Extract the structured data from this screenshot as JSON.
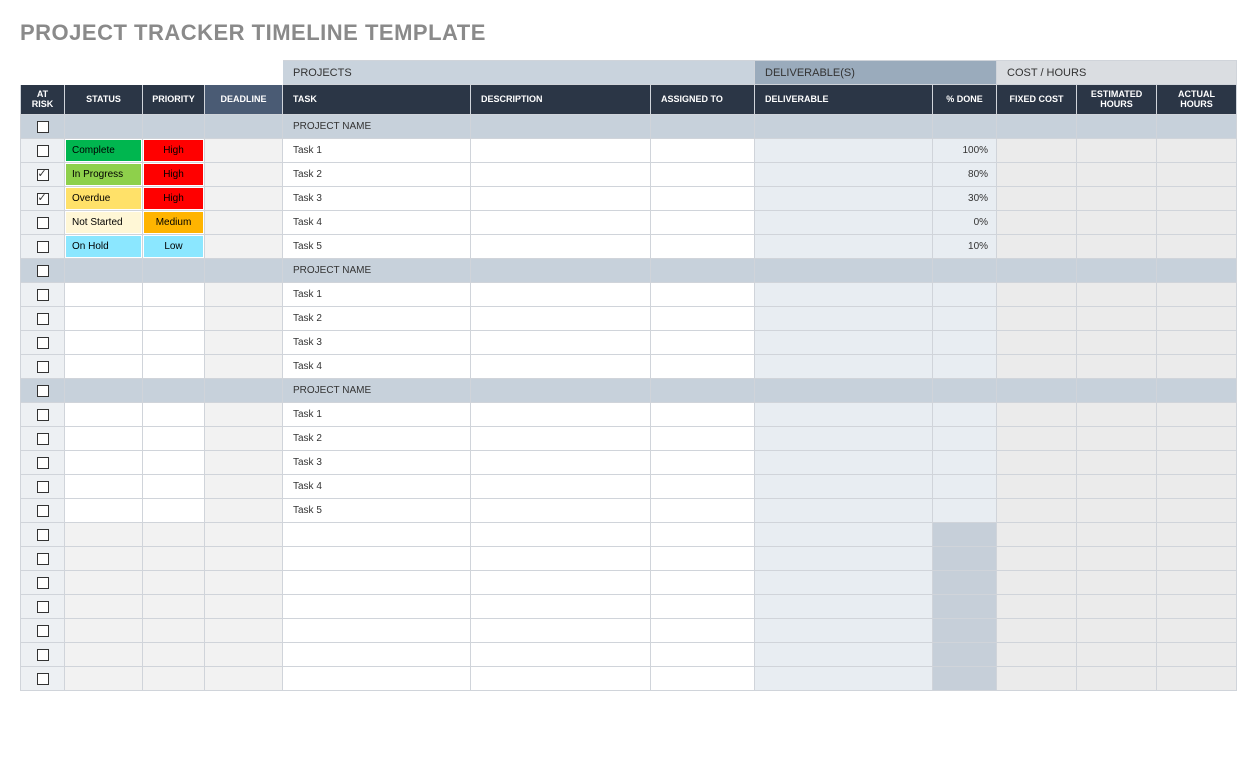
{
  "title": "PROJECT TRACKER TIMELINE TEMPLATE",
  "groups": {
    "projects": "PROJECTS",
    "deliverables": "DELIVERABLE(S)",
    "cost": "COST / HOURS"
  },
  "headers": {
    "at_risk": "AT RISK",
    "status": "STATUS",
    "priority": "PRIORITY",
    "deadline": "DEADLINE",
    "task": "TASK",
    "description": "DESCRIPTION",
    "assigned_to": "ASSIGNED TO",
    "deliverable": "DELIVERABLE",
    "pct_done": "% DONE",
    "fixed_cost": "FIXED COST",
    "estimated_hours": "ESTIMATED HOURS",
    "actual_hours": "ACTUAL HOURS"
  },
  "colors": {
    "title_text": "#8a8a8a",
    "border": "#d0d4da",
    "group_projects_bg": "#c9d3dd",
    "group_deliv_bg": "#9aabbc",
    "group_cost_bg": "#dadde1",
    "header_bg": "#2b3646",
    "header_deadline_bg": "#4a5b74",
    "header_text": "#ffffff",
    "section_bg": "#c7d1db",
    "atrisk_bg": "#edf0f3",
    "deadline_bg": "#f2f2f2",
    "deliv_bg": "#e8edf2",
    "cost_bg": "#ebebeb",
    "pct_empty_bg": "#c6cfd9",
    "status": {
      "Complete": {
        "bg": "#00b64f",
        "fg": "#000000"
      },
      "In Progress": {
        "bg": "#8ed04b",
        "fg": "#000000"
      },
      "Overdue": {
        "bg": "#ffe169",
        "fg": "#000000"
      },
      "Not Started": {
        "bg": "#fff7d6",
        "fg": "#000000"
      },
      "On Hold": {
        "bg": "#8be7ff",
        "fg": "#000000"
      }
    },
    "priority": {
      "High": {
        "bg": "#ff0000",
        "fg": "#000000"
      },
      "Medium": {
        "bg": "#ffb400",
        "fg": "#000000"
      },
      "Low": {
        "bg": "#8be7ff",
        "fg": "#000000"
      }
    }
  },
  "rows": [
    {
      "type": "section",
      "task": "PROJECT NAME",
      "at_risk": false
    },
    {
      "type": "task",
      "at_risk": false,
      "status": "Complete",
      "priority": "High",
      "task": "Task 1",
      "pct_done": "100%"
    },
    {
      "type": "task",
      "at_risk": true,
      "status": "In Progress",
      "priority": "High",
      "task": "Task 2",
      "pct_done": "80%"
    },
    {
      "type": "task",
      "at_risk": true,
      "status": "Overdue",
      "priority": "High",
      "task": "Task 3",
      "pct_done": "30%"
    },
    {
      "type": "task",
      "at_risk": false,
      "status": "Not Started",
      "priority": "Medium",
      "task": "Task 4",
      "pct_done": "0%"
    },
    {
      "type": "task",
      "at_risk": false,
      "status": "On Hold",
      "priority": "Low",
      "task": "Task 5",
      "pct_done": "10%"
    },
    {
      "type": "section",
      "task": "PROJECT NAME",
      "at_risk": false
    },
    {
      "type": "task",
      "at_risk": false,
      "task": "Task 1"
    },
    {
      "type": "task",
      "at_risk": false,
      "task": "Task 2"
    },
    {
      "type": "task",
      "at_risk": false,
      "task": "Task 3"
    },
    {
      "type": "task",
      "at_risk": false,
      "task": "Task 4"
    },
    {
      "type": "section",
      "task": "PROJECT NAME",
      "at_risk": false
    },
    {
      "type": "task",
      "at_risk": false,
      "task": "Task 1"
    },
    {
      "type": "task",
      "at_risk": false,
      "task": "Task 2"
    },
    {
      "type": "task",
      "at_risk": false,
      "task": "Task 3"
    },
    {
      "type": "task",
      "at_risk": false,
      "task": "Task 4"
    },
    {
      "type": "task",
      "at_risk": false,
      "task": "Task 5"
    },
    {
      "type": "empty",
      "at_risk": false
    },
    {
      "type": "empty",
      "at_risk": false
    },
    {
      "type": "empty",
      "at_risk": false
    },
    {
      "type": "empty",
      "at_risk": false
    },
    {
      "type": "empty",
      "at_risk": false
    },
    {
      "type": "empty",
      "at_risk": false
    },
    {
      "type": "empty",
      "at_risk": false
    }
  ]
}
